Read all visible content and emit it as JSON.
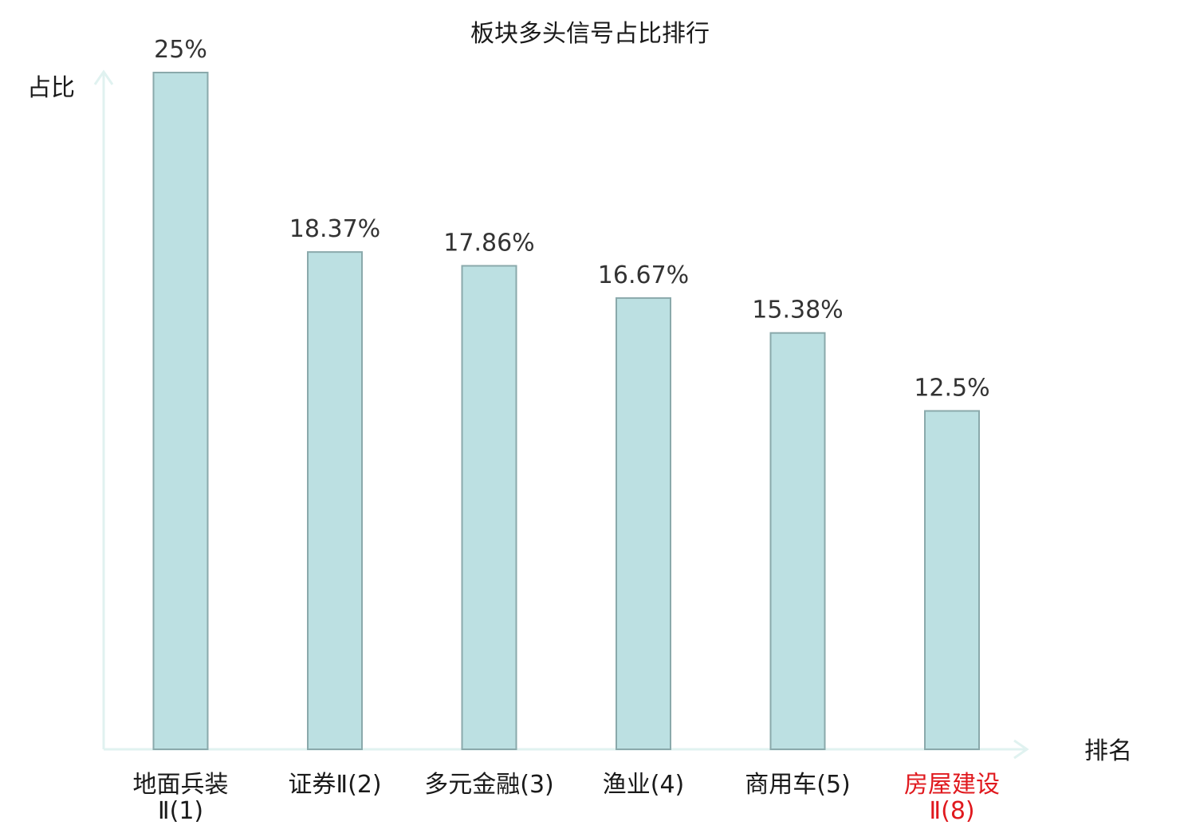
{
  "chart_data": {
    "type": "bar",
    "title": "板块多头信号占比排行",
    "ylabel": "占比",
    "xlabel": "排名",
    "categories": [
      {
        "lines": [
          "地面兵装",
          "Ⅱ(1)"
        ],
        "highlight": false
      },
      {
        "lines": [
          "证券Ⅱ(2)"
        ],
        "highlight": false
      },
      {
        "lines": [
          "多元金融(3)"
        ],
        "highlight": false
      },
      {
        "lines": [
          "渔业(4)"
        ],
        "highlight": false
      },
      {
        "lines": [
          "商用车(5)"
        ],
        "highlight": false
      },
      {
        "lines": [
          "房屋建设",
          "Ⅱ(8)"
        ],
        "highlight": true
      }
    ],
    "values": [
      25,
      18.37,
      17.86,
      16.67,
      15.38,
      12.5
    ],
    "value_labels": [
      "25%",
      "18.37%",
      "17.86%",
      "16.67%",
      "15.38%",
      "12.5%"
    ],
    "ylim": [
      0,
      25
    ],
    "grid": false,
    "colors": {
      "bar_fill": "#bce0e2",
      "bar_stroke": "#8aa9ab",
      "axis": "#e0f2f0",
      "text": "#1a1a1a",
      "highlight": "#e0191e"
    }
  }
}
